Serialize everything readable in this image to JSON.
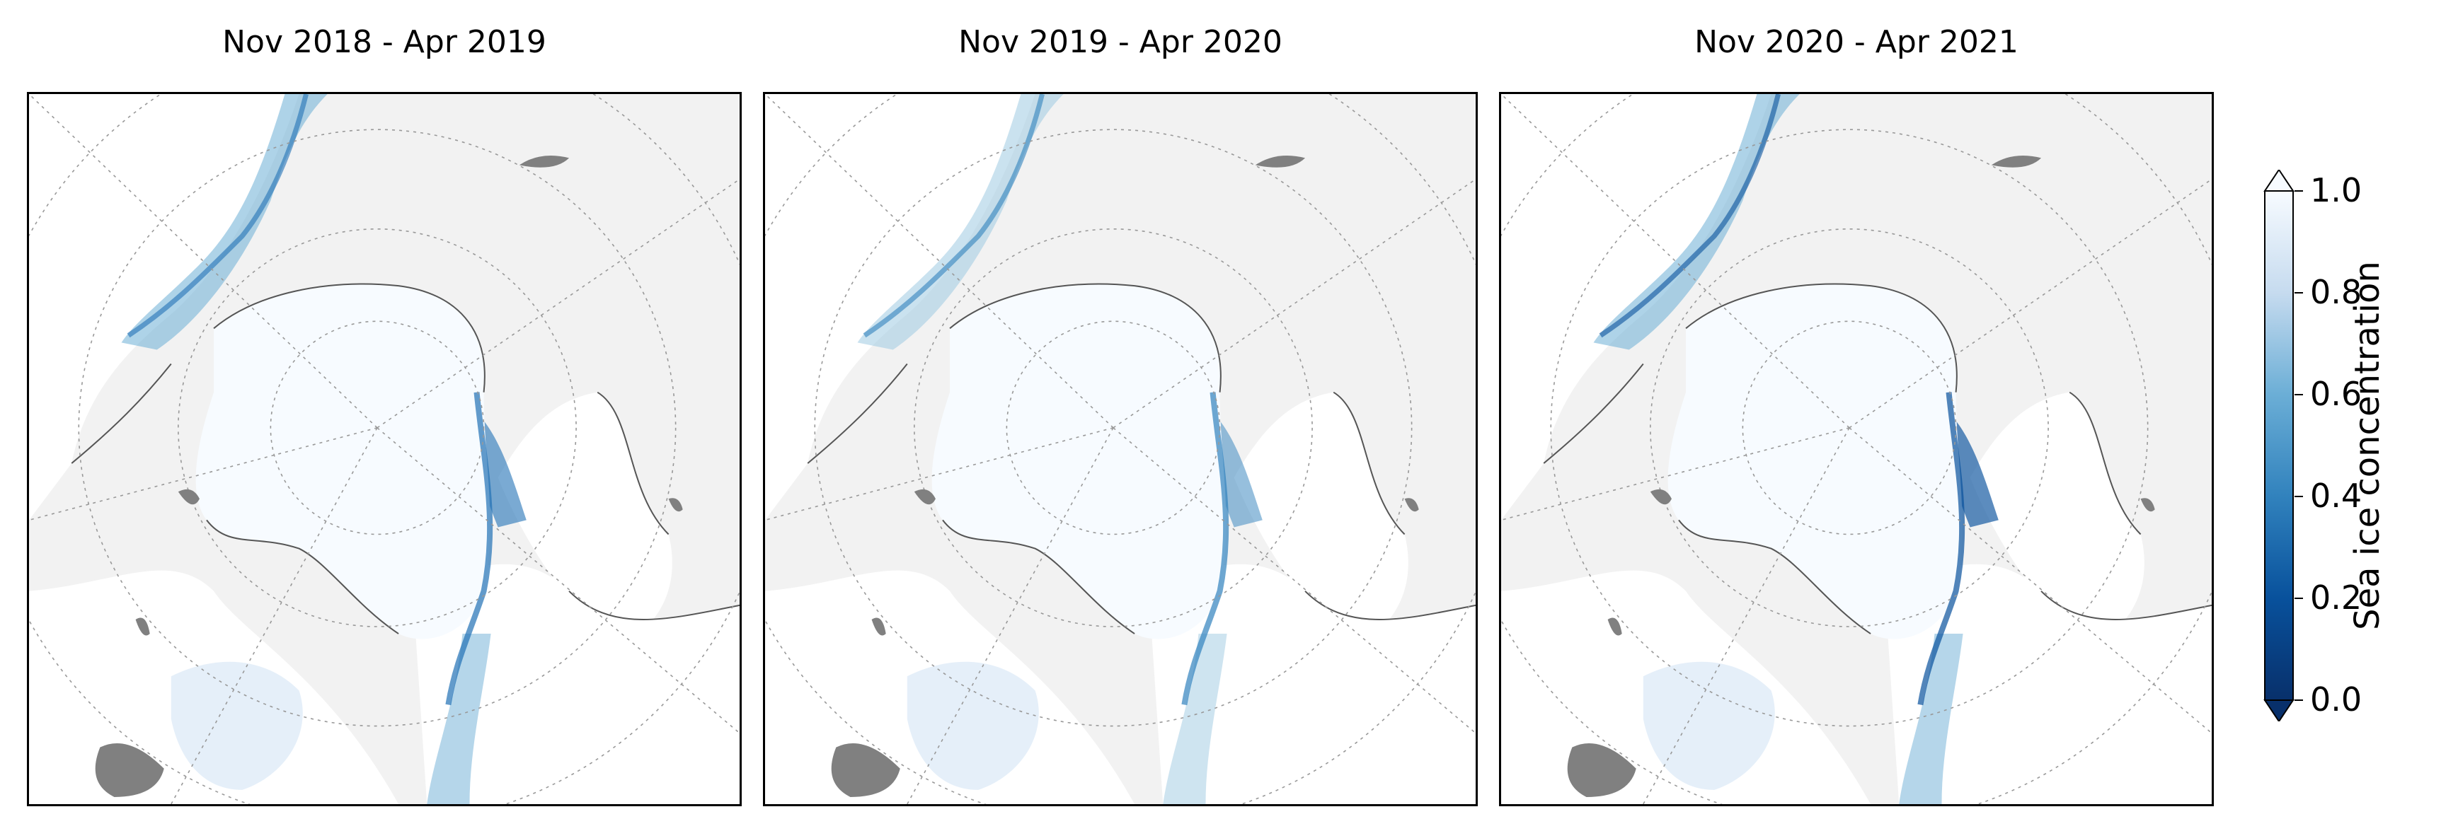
{
  "panels": [
    {
      "title": "Nov 2018 - Apr 2019"
    },
    {
      "title": "Nov 2019 - Apr 2020"
    },
    {
      "title": "Nov 2020 - Apr 2021"
    }
  ],
  "colorbar": {
    "label": "Sea ice concentration",
    "ticks": [
      "0.0",
      "0.2",
      "0.4",
      "0.6",
      "0.8",
      "1.0"
    ],
    "min": 0.0,
    "max": 1.0,
    "colormap": "Blues_r",
    "extend": "both"
  },
  "colors": {
    "land": "#f2f2f2",
    "ocean": "#ffffff",
    "ice_high": "#f7fbff",
    "ice_low": "#08306b",
    "lakes": "#808080"
  }
}
